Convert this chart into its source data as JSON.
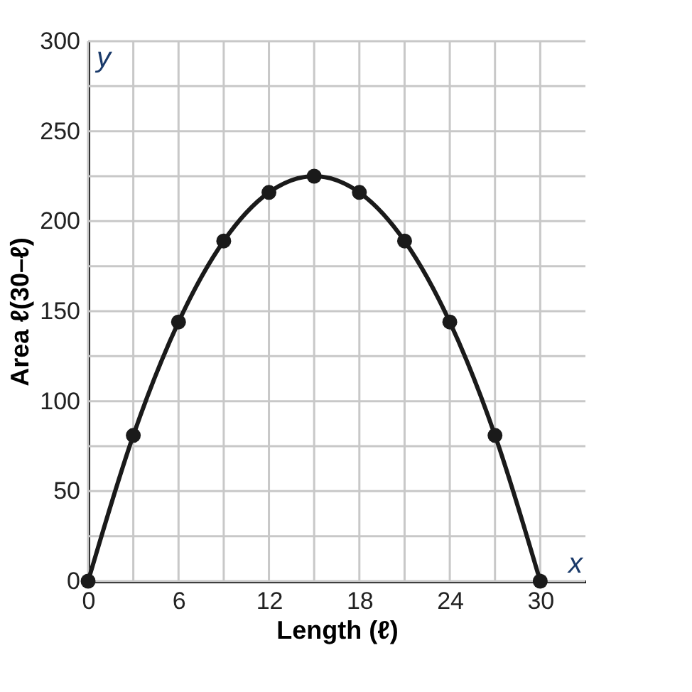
{
  "chart_data": {
    "type": "line",
    "xlabel": "Length (ℓ)",
    "ylabel": "Area ℓ(30–ℓ)",
    "x": [
      0,
      3,
      6,
      9,
      12,
      15,
      18,
      21,
      24,
      27,
      30
    ],
    "series": [
      {
        "color": "#1a1a1a",
        "values": [
          0,
          81,
          144,
          189,
          216,
          225,
          216,
          189,
          144,
          81,
          0
        ]
      }
    ],
    "xlim": [
      0,
      33
    ],
    "ylim": [
      0,
      300
    ],
    "xticks": [
      0,
      {
        "value": 3,
        "label": null
      },
      6,
      {
        "value": 9,
        "label": null
      },
      12,
      {
        "value": 15,
        "label": null
      },
      18,
      {
        "value": 21,
        "label": null
      },
      24,
      {
        "value": 27,
        "label": null
      },
      30
    ],
    "yticks": [
      0,
      {
        "value": 25,
        "label": null
      },
      50,
      {
        "value": 75,
        "label": null
      },
      100,
      {
        "value": 125,
        "label": null
      },
      150,
      {
        "value": 175,
        "label": null
      },
      200,
      {
        "value": 225,
        "label": null
      },
      250,
      {
        "value": 275,
        "label": null
      },
      300
    ],
    "grid": true,
    "marker": "circle",
    "line_style": "solid",
    "annotations": [
      "x",
      "y"
    ]
  }
}
